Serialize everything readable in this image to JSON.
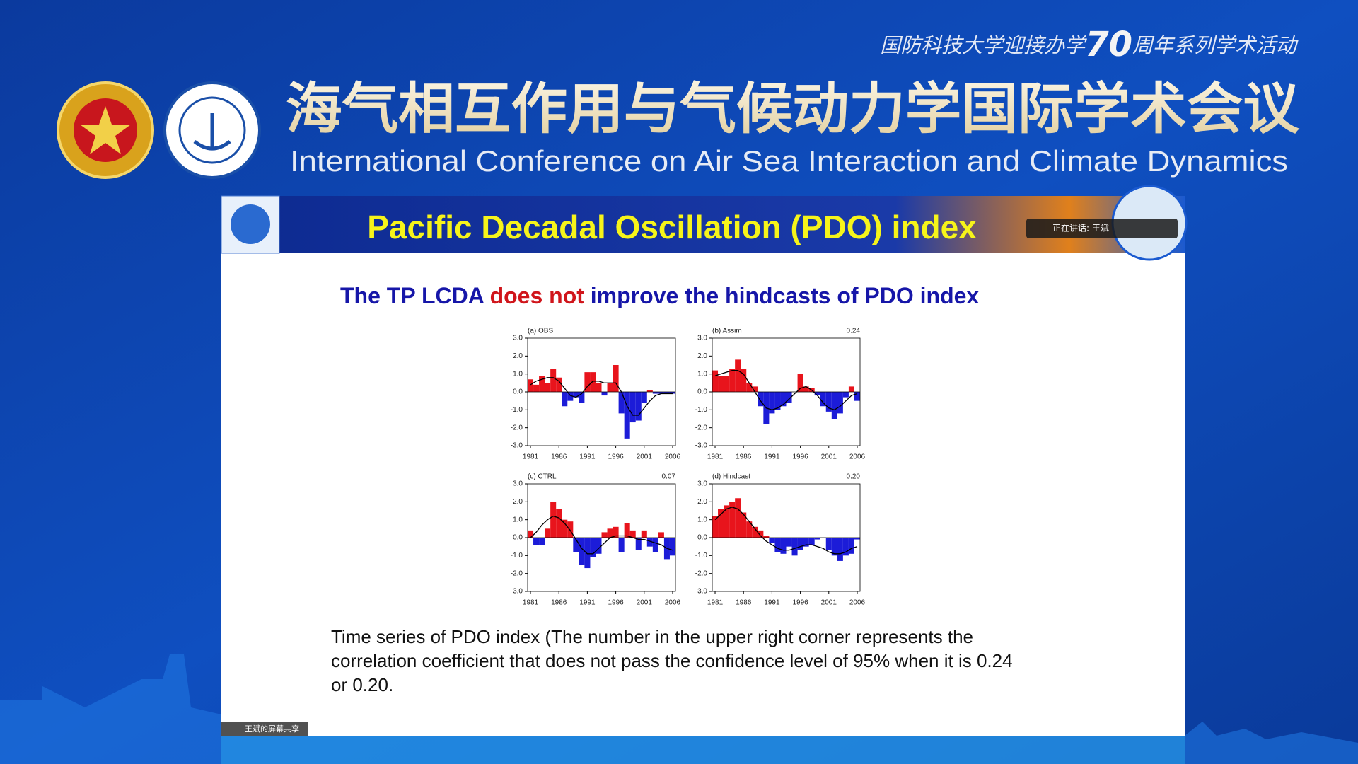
{
  "header": {
    "tagline": [
      "国防科技大学迎接办学",
      "70",
      "周年系列学术活动"
    ],
    "title_cn": "海气相互作用与气候动力学国际学术会议",
    "title_en": "International Conference on Air Sea Interaction and Climate Dynamics"
  },
  "slide": {
    "title": "Pacific Decadal Oscillation (PDO) index",
    "subtitle": [
      "The TP LCDA ",
      "does not",
      " improve the hindcasts of PDO index"
    ],
    "caption": [
      "Time series of PDO index (The number in the upper right corner represents the",
      "correlation coefficient that does not pass the confidence level of 95% when it is 0.24",
      "or 0.20."
    ]
  },
  "overlay": {
    "speaking": "正在讲话: 王斌",
    "screen_share": "王斌的屏幕共享"
  },
  "chart_data": [
    {
      "type": "bar",
      "title": "(a) OBS",
      "x": [
        1981,
        1982,
        1983,
        1984,
        1985,
        1986,
        1987,
        1988,
        1989,
        1990,
        1991,
        1992,
        1993,
        1994,
        1995,
        1996,
        1997,
        1998,
        1999,
        2000,
        2001,
        2002,
        2003,
        2004,
        2005,
        2006
      ],
      "values": [
        0.7,
        0.4,
        0.9,
        0.5,
        1.3,
        0.8,
        -0.8,
        -0.5,
        -0.3,
        -0.6,
        1.1,
        1.1,
        0.5,
        -0.2,
        0.5,
        1.5,
        -1.2,
        -2.6,
        -1.7,
        -1.6,
        -0.6,
        0.1,
        -0.1,
        -0.1,
        -0.1,
        -0.1
      ],
      "smooth_values": [
        0.4,
        0.6,
        0.7,
        0.8,
        0.8,
        0.6,
        0.2,
        -0.2,
        -0.3,
        -0.1,
        0.3,
        0.6,
        0.6,
        0.5,
        0.5,
        0.5,
        0.0,
        -0.8,
        -1.3,
        -1.3,
        -0.9,
        -0.5,
        -0.2,
        -0.1,
        -0.1,
        -0.1
      ],
      "positive_color": "#e8141c",
      "negative_color": "#1c1cd8",
      "line_color": "#000000",
      "xlim": [
        1980.5,
        2006.5
      ],
      "xticks": [
        1981,
        1986,
        1991,
        1996,
        2001,
        2006
      ],
      "ylim": [
        -3,
        3
      ],
      "yticks": [
        {
          "value": -3,
          "label": "-3.0"
        },
        {
          "value": -2,
          "label": "-2.0"
        },
        {
          "value": -1,
          "label": "-1.0"
        },
        {
          "value": 0,
          "label": "0.0"
        },
        {
          "value": 1,
          "label": "1.0"
        },
        {
          "value": 2,
          "label": "2.0"
        },
        {
          "value": 3,
          "label": "3.0"
        }
      ]
    },
    {
      "type": "bar",
      "title": "(b) Assim",
      "annotation": "0.24",
      "x": [
        1981,
        1982,
        1983,
        1984,
        1985,
        1986,
        1987,
        1988,
        1989,
        1990,
        1991,
        1992,
        1993,
        1994,
        1995,
        1996,
        1997,
        1998,
        1999,
        2000,
        2001,
        2002,
        2003,
        2004,
        2005,
        2006
      ],
      "values": [
        1.2,
        0.9,
        0.9,
        1.3,
        1.8,
        1.3,
        0.5,
        0.3,
        -0.8,
        -1.8,
        -1.2,
        -1.0,
        -0.8,
        -0.6,
        0.0,
        1.0,
        0.3,
        0.2,
        -0.2,
        -0.8,
        -1.1,
        -1.5,
        -1.2,
        -0.3,
        0.3,
        -0.5
      ],
      "smooth_values": [
        0.9,
        1.0,
        1.1,
        1.2,
        1.2,
        1.0,
        0.5,
        0.0,
        -0.5,
        -0.9,
        -1.0,
        -0.9,
        -0.7,
        -0.4,
        -0.1,
        0.2,
        0.3,
        0.1,
        -0.2,
        -0.6,
        -0.9,
        -1.0,
        -0.8,
        -0.5,
        -0.2,
        -0.1
      ],
      "positive_color": "#e8141c",
      "negative_color": "#1c1cd8",
      "line_color": "#000000",
      "xlim": [
        1980.5,
        2006.5
      ],
      "xticks": [
        1981,
        1986,
        1991,
        1996,
        2001,
        2006
      ],
      "ylim": [
        -3,
        3
      ],
      "yticks": [
        {
          "value": -3,
          "label": "-3.0"
        },
        {
          "value": -2,
          "label": "-2.0"
        },
        {
          "value": -1,
          "label": "-1.0"
        },
        {
          "value": 0,
          "label": "0.0"
        },
        {
          "value": 1,
          "label": "1.0"
        },
        {
          "value": 2,
          "label": "2.0"
        },
        {
          "value": 3,
          "label": "3.0"
        }
      ]
    },
    {
      "type": "bar",
      "title": "(c) CTRL",
      "annotation": "0.07",
      "x": [
        1981,
        1982,
        1983,
        1984,
        1985,
        1986,
        1987,
        1988,
        1989,
        1990,
        1991,
        1992,
        1993,
        1994,
        1995,
        1996,
        1997,
        1998,
        1999,
        2000,
        2001,
        2002,
        2003,
        2004,
        2005,
        2006
      ],
      "values": [
        0.4,
        -0.4,
        -0.4,
        0.5,
        2.0,
        1.6,
        1.0,
        0.9,
        -0.8,
        -1.5,
        -1.7,
        -1.1,
        -0.9,
        0.3,
        0.5,
        0.6,
        -0.8,
        0.8,
        0.4,
        -0.7,
        0.4,
        -0.5,
        -0.8,
        0.3,
        -1.2,
        -1.0
      ],
      "smooth_values": [
        0.0,
        0.3,
        0.7,
        1.0,
        1.2,
        1.1,
        0.8,
        0.4,
        -0.1,
        -0.6,
        -0.9,
        -0.9,
        -0.6,
        -0.3,
        0.0,
        0.1,
        0.1,
        0.1,
        0.0,
        -0.1,
        -0.1,
        -0.2,
        -0.3,
        -0.4,
        -0.6,
        -0.7
      ],
      "positive_color": "#e8141c",
      "negative_color": "#1c1cd8",
      "line_color": "#000000",
      "xlim": [
        1980.5,
        2006.5
      ],
      "xticks": [
        1981,
        1986,
        1991,
        1996,
        2001,
        2006
      ],
      "ylim": [
        -3,
        3
      ],
      "yticks": [
        {
          "value": -3,
          "label": "-3.0"
        },
        {
          "value": -2,
          "label": "-2.0"
        },
        {
          "value": -1,
          "label": "-1.0"
        },
        {
          "value": 0,
          "label": "0.0"
        },
        {
          "value": 1,
          "label": "1.0"
        },
        {
          "value": 2,
          "label": "2.0"
        },
        {
          "value": 3,
          "label": "3.0"
        }
      ]
    },
    {
      "type": "bar",
      "title": "(d) Hindcast",
      "annotation": "0.20",
      "x": [
        1981,
        1982,
        1983,
        1984,
        1985,
        1986,
        1987,
        1988,
        1989,
        1990,
        1991,
        1992,
        1993,
        1994,
        1995,
        1996,
        1997,
        1998,
        1999,
        2000,
        2001,
        2002,
        2003,
        2004,
        2005,
        2006
      ],
      "values": [
        1.2,
        1.6,
        1.8,
        2.0,
        2.2,
        1.4,
        0.9,
        0.6,
        0.4,
        0.1,
        -0.3,
        -0.8,
        -0.9,
        -0.5,
        -1.0,
        -0.7,
        -0.5,
        -0.4,
        -0.1,
        0.0,
        -0.7,
        -1.0,
        -1.3,
        -1.0,
        -0.9,
        -0.1
      ],
      "smooth_values": [
        1.0,
        1.3,
        1.6,
        1.7,
        1.6,
        1.3,
        0.9,
        0.5,
        0.1,
        -0.2,
        -0.4,
        -0.6,
        -0.7,
        -0.7,
        -0.6,
        -0.5,
        -0.4,
        -0.4,
        -0.5,
        -0.6,
        -0.8,
        -0.9,
        -0.9,
        -0.8,
        -0.6,
        -0.5
      ],
      "positive_color": "#e8141c",
      "negative_color": "#1c1cd8",
      "line_color": "#000000",
      "xlim": [
        1980.5,
        2006.5
      ],
      "xticks": [
        1981,
        1986,
        1991,
        1996,
        2001,
        2006
      ],
      "ylim": [
        -3,
        3
      ],
      "yticks": [
        {
          "value": -3,
          "label": "-3.0"
        },
        {
          "value": -2,
          "label": "-2.0"
        },
        {
          "value": -1,
          "label": "-1.0"
        },
        {
          "value": 0,
          "label": "0.0"
        },
        {
          "value": 1,
          "label": "1.0"
        },
        {
          "value": 2,
          "label": "2.0"
        },
        {
          "value": 3,
          "label": "3.0"
        }
      ]
    }
  ]
}
